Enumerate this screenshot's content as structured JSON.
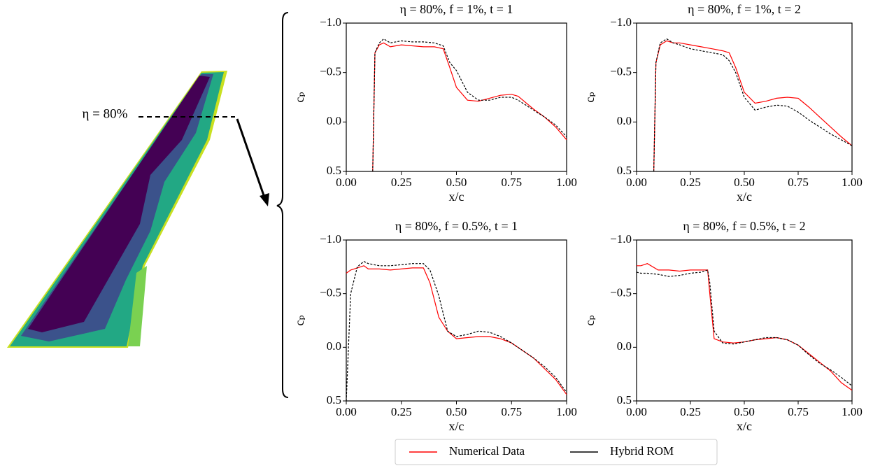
{
  "annotation": {
    "label": "η = 80%"
  },
  "chart_data": [
    {
      "type": "line",
      "title": "η = 80%, f = 1%, t = 1",
      "x_label": "x/c",
      "y_label": "cₚ",
      "invert_y": true,
      "xlim": [
        0,
        1
      ],
      "ylim": [
        -1.0,
        0.5
      ],
      "xticks": [
        {
          "value": 0,
          "label": "0.00"
        },
        {
          "value": 0.25,
          "label": "0.25"
        },
        {
          "value": 0.5,
          "label": "0.50"
        },
        {
          "value": 0.75,
          "label": "0.75"
        },
        {
          "value": 1,
          "label": "1.00"
        }
      ],
      "yticks": [
        {
          "value": -1.0,
          "label": "−1.0"
        },
        {
          "value": -0.5,
          "label": "−0.5"
        },
        {
          "value": 0,
          "label": "0.0"
        },
        0.5
      ],
      "x": [
        0.12,
        0.13,
        0.15,
        0.17,
        0.2,
        0.25,
        0.3,
        0.35,
        0.4,
        0.44,
        0.47,
        0.5,
        0.55,
        0.6,
        0.65,
        0.7,
        0.75,
        0.78,
        0.85,
        0.9,
        0.95,
        1.0
      ],
      "series": [
        {
          "name": "Numerical Data",
          "color": "#ff0000",
          "dashed": false,
          "values": [
            0.5,
            -0.7,
            -0.78,
            -0.8,
            -0.76,
            -0.78,
            -0.77,
            -0.76,
            -0.76,
            -0.74,
            -0.55,
            -0.35,
            -0.22,
            -0.21,
            -0.24,
            -0.27,
            -0.28,
            -0.26,
            -0.13,
            -0.05,
            0.05,
            0.18
          ]
        },
        {
          "name": "Hybrid ROM",
          "color": "#000000",
          "dashed": true,
          "values": [
            0.5,
            -0.7,
            -0.8,
            -0.84,
            -0.8,
            -0.82,
            -0.81,
            -0.81,
            -0.8,
            -0.77,
            -0.6,
            -0.52,
            -0.3,
            -0.22,
            -0.22,
            -0.25,
            -0.25,
            -0.22,
            -0.12,
            -0.05,
            0.03,
            0.15
          ]
        }
      ]
    },
    {
      "type": "line",
      "title": "η = 80%, f = 1%, t = 2",
      "x_label": "x/c",
      "y_label": "cₚ",
      "invert_y": true,
      "xlim": [
        0,
        1
      ],
      "ylim": [
        -1.0,
        0.5
      ],
      "xticks": [
        {
          "value": 0,
          "label": "0.00"
        },
        {
          "value": 0.25,
          "label": "0.25"
        },
        {
          "value": 0.5,
          "label": "0.50"
        },
        {
          "value": 0.75,
          "label": "0.75"
        },
        {
          "value": 1,
          "label": "1.00"
        }
      ],
      "yticks": [
        {
          "value": -1.0,
          "label": "−1.0"
        },
        {
          "value": -0.5,
          "label": "−0.5"
        },
        {
          "value": 0,
          "label": "0.0"
        },
        0.5
      ],
      "x": [
        0.08,
        0.09,
        0.11,
        0.14,
        0.17,
        0.2,
        0.25,
        0.3,
        0.35,
        0.4,
        0.43,
        0.46,
        0.5,
        0.55,
        0.6,
        0.65,
        0.7,
        0.75,
        0.8,
        0.85,
        0.9,
        0.95,
        1.0
      ],
      "series": [
        {
          "name": "Numerical Data",
          "color": "#ff0000",
          "dashed": false,
          "values": [
            0.5,
            -0.6,
            -0.78,
            -0.82,
            -0.8,
            -0.8,
            -0.78,
            -0.76,
            -0.74,
            -0.72,
            -0.7,
            -0.55,
            -0.3,
            -0.19,
            -0.21,
            -0.24,
            -0.25,
            -0.24,
            -0.15,
            -0.05,
            0.05,
            0.15,
            0.24
          ]
        },
        {
          "name": "Hybrid ROM",
          "color": "#000000",
          "dashed": true,
          "values": [
            0.5,
            -0.6,
            -0.8,
            -0.84,
            -0.8,
            -0.78,
            -0.74,
            -0.72,
            -0.7,
            -0.68,
            -0.62,
            -0.5,
            -0.25,
            -0.12,
            -0.15,
            -0.17,
            -0.16,
            -0.1,
            -0.02,
            0.05,
            0.12,
            0.18,
            0.24
          ]
        }
      ]
    },
    {
      "type": "line",
      "title": "η = 80%, f = 0.5%, t = 1",
      "x_label": "x/c",
      "y_label": "cₚ",
      "invert_y": true,
      "xlim": [
        0,
        1
      ],
      "ylim": [
        -1.0,
        0.5
      ],
      "xticks": [
        {
          "value": 0,
          "label": "0.00"
        },
        {
          "value": 0.25,
          "label": "0.25"
        },
        {
          "value": 0.5,
          "label": "0.50"
        },
        {
          "value": 0.75,
          "label": "0.75"
        },
        {
          "value": 1,
          "label": "1.00"
        }
      ],
      "yticks": [
        {
          "value": -1.0,
          "label": "−1.0"
        },
        {
          "value": -0.5,
          "label": "−0.5"
        },
        {
          "value": 0,
          "label": "0.0"
        },
        0.5
      ],
      "x": [
        0,
        0.02,
        0.05,
        0.08,
        0.1,
        0.15,
        0.2,
        0.25,
        0.3,
        0.35,
        0.38,
        0.42,
        0.46,
        0.5,
        0.55,
        0.6,
        0.65,
        0.7,
        0.75,
        0.8,
        0.85,
        0.9,
        0.95,
        1.0
      ],
      "series": [
        {
          "name": "Numerical Data",
          "color": "#ff0000",
          "dashed": false,
          "values": [
            -0.69,
            -0.72,
            -0.74,
            -0.76,
            -0.73,
            -0.73,
            -0.72,
            -0.73,
            -0.74,
            -0.74,
            -0.6,
            -0.28,
            -0.15,
            -0.08,
            -0.09,
            -0.1,
            -0.1,
            -0.08,
            -0.04,
            0.03,
            0.1,
            0.2,
            0.3,
            0.44
          ]
        },
        {
          "name": "Hybrid ROM",
          "color": "#000000",
          "dashed": true,
          "values": [
            0.5,
            -0.5,
            -0.75,
            -0.8,
            -0.78,
            -0.76,
            -0.76,
            -0.77,
            -0.78,
            -0.78,
            -0.72,
            -0.48,
            -0.15,
            -0.1,
            -0.12,
            -0.15,
            -0.14,
            -0.1,
            -0.04,
            0.03,
            0.1,
            0.18,
            0.28,
            0.42
          ]
        }
      ]
    },
    {
      "type": "line",
      "title": "η = 80%, f = 0.5%, t = 2",
      "x_label": "x/c",
      "y_label": "cₚ",
      "invert_y": true,
      "xlim": [
        0,
        1
      ],
      "ylim": [
        -1.0,
        0.5
      ],
      "xticks": [
        {
          "value": 0,
          "label": "0.00"
        },
        {
          "value": 0.25,
          "label": "0.25"
        },
        {
          "value": 0.5,
          "label": "0.50"
        },
        {
          "value": 0.75,
          "label": "0.75"
        },
        {
          "value": 1,
          "label": "1.00"
        }
      ],
      "yticks": [
        {
          "value": -1.0,
          "label": "−1.0"
        },
        {
          "value": -0.5,
          "label": "−0.5"
        },
        {
          "value": 0,
          "label": "0.0"
        },
        0.5
      ],
      "x": [
        0,
        0.02,
        0.05,
        0.1,
        0.15,
        0.2,
        0.25,
        0.3,
        0.33,
        0.34,
        0.36,
        0.4,
        0.45,
        0.5,
        0.55,
        0.6,
        0.65,
        0.7,
        0.75,
        0.8,
        0.85,
        0.9,
        0.95,
        1.0
      ],
      "series": [
        {
          "name": "Numerical Data",
          "color": "#ff0000",
          "dashed": false,
          "values": [
            -0.76,
            -0.76,
            -0.78,
            -0.72,
            -0.72,
            -0.71,
            -0.72,
            -0.72,
            -0.72,
            -0.5,
            -0.08,
            -0.05,
            -0.04,
            -0.05,
            -0.07,
            -0.08,
            -0.09,
            -0.07,
            -0.02,
            0.06,
            0.14,
            0.22,
            0.33,
            0.4
          ]
        },
        {
          "name": "Hybrid ROM",
          "color": "#000000",
          "dashed": true,
          "values": [
            -0.7,
            -0.69,
            -0.69,
            -0.68,
            -0.66,
            -0.67,
            -0.69,
            -0.7,
            -0.72,
            -0.6,
            -0.15,
            -0.04,
            -0.03,
            -0.05,
            -0.07,
            -0.09,
            -0.09,
            -0.07,
            -0.02,
            0.07,
            0.15,
            0.21,
            0.28,
            0.36
          ]
        }
      ]
    }
  ]
}
